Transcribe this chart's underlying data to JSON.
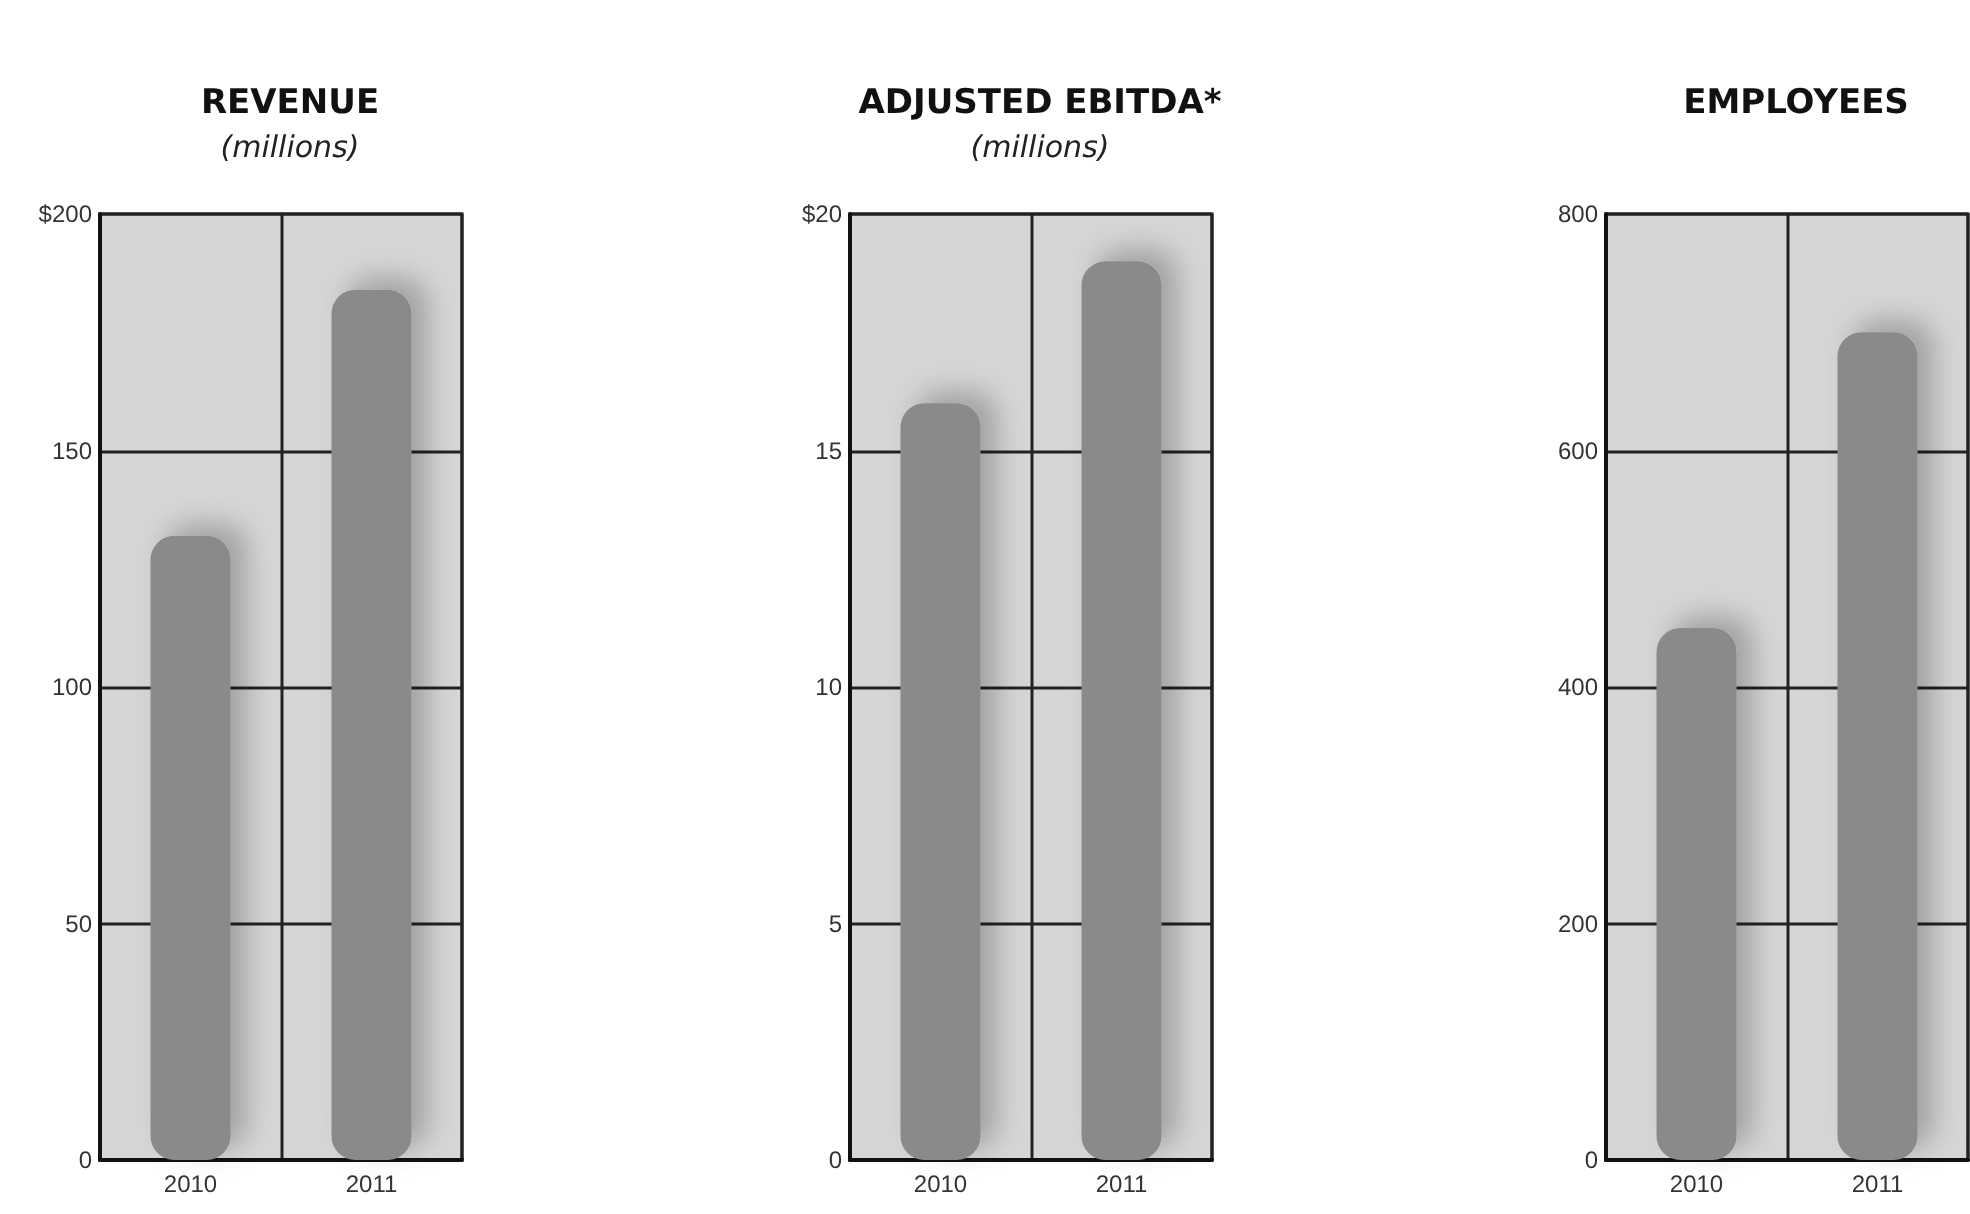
{
  "chart_data": [
    {
      "type": "bar",
      "title": "REVENUE",
      "subtitle": "(millions)",
      "categories": [
        "2010",
        "2011"
      ],
      "values": [
        132,
        184
      ],
      "color": "#8a8a8a",
      "ylim": [
        0,
        200
      ],
      "yticks": [
        0,
        50,
        100,
        150,
        {
          "value": 200,
          "label": "$200"
        }
      ],
      "grid": true
    },
    {
      "type": "bar",
      "title": "ADJUSTED EBITDA*",
      "subtitle": "(millions)",
      "categories": [
        "2010",
        "2011"
      ],
      "values": [
        16,
        19
      ],
      "color": "#8a8a8a",
      "ylim": [
        0,
        20
      ],
      "yticks": [
        0,
        5,
        10,
        15,
        {
          "value": 20,
          "label": "$20"
        }
      ],
      "grid": true
    },
    {
      "type": "bar",
      "title": "EMPLOYEES",
      "categories": [
        "2010",
        "2011"
      ],
      "values": [
        450,
        700
      ],
      "color": "#8a8a8a",
      "ylim": [
        0,
        800
      ],
      "yticks": [
        0,
        200,
        400,
        600,
        800
      ],
      "grid": true
    }
  ]
}
